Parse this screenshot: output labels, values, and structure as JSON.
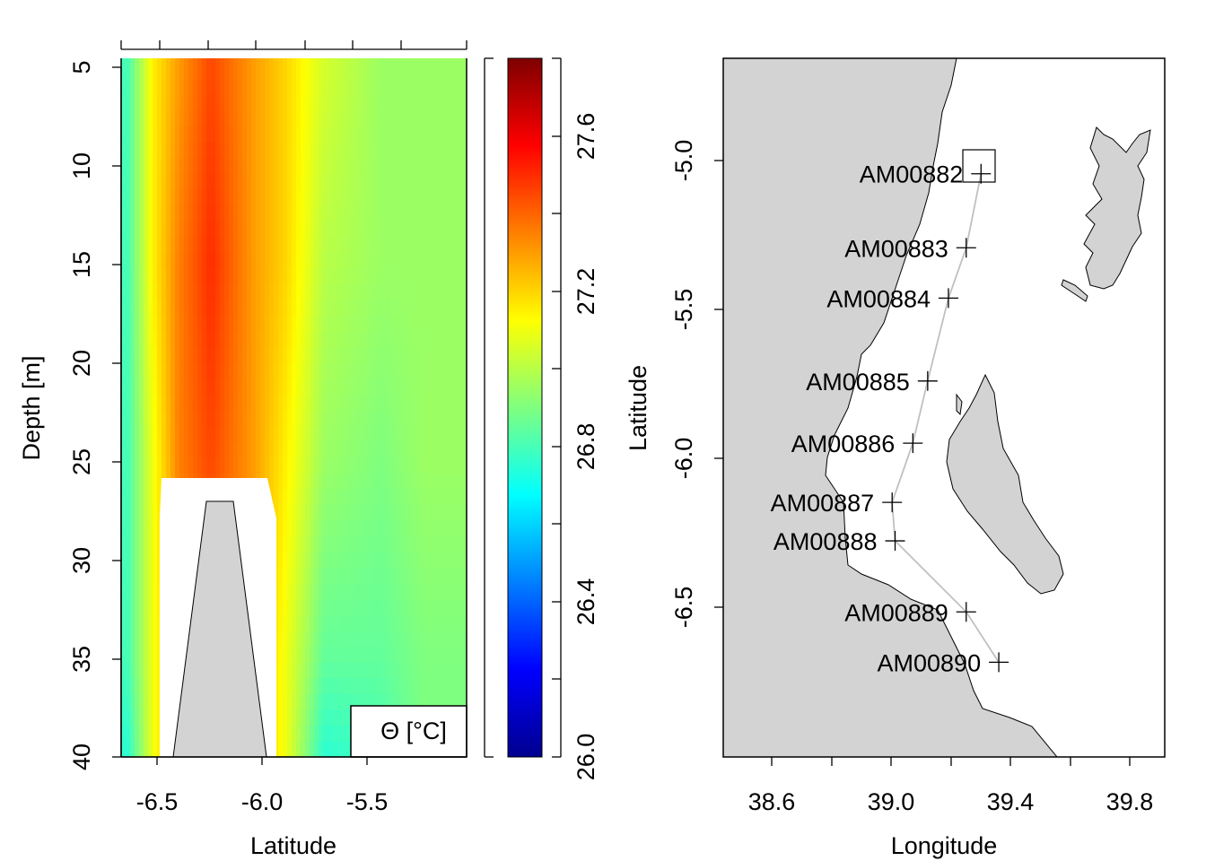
{
  "section_plot": {
    "xlabel": "Latitude",
    "ylabel": "Depth [m]",
    "x_ticks": [
      "-6.5",
      "-6.0",
      "-5.5"
    ],
    "y_ticks": [
      "5",
      "10",
      "15",
      "20",
      "25",
      "30",
      "35",
      "40"
    ],
    "legend_label": "Θ [°C]",
    "colorbar_ticks": [
      "26.0",
      "26.4",
      "26.8",
      "27.2",
      "27.6"
    ],
    "colorbar_range": [
      26.0,
      27.8
    ]
  },
  "map_plot": {
    "xlabel": "Longitude",
    "ylabel": "Latitude",
    "x_ticks": [
      "38.6",
      "39.0",
      "39.4",
      "39.8"
    ],
    "y_ticks": [
      "-5.0",
      "-5.5",
      "-6.0",
      "-6.5"
    ]
  },
  "chart_data": [
    {
      "type": "heatmap",
      "xlabel": "Latitude",
      "ylabel": "Depth [m]",
      "xlim": [
        -6.67,
        -5.05
      ],
      "ylim": [
        40,
        5
      ],
      "legend": "Θ [°C]",
      "zlim": [
        26.0,
        27.8
      ],
      "stations": [
        {
          "latitude": -6.64,
          "temps": [
            26.8,
            26.8,
            26.8,
            26.8,
            26.75
          ]
        },
        {
          "latitude": -6.52,
          "temps": [
            27.15,
            27.15,
            27.1,
            27.1,
            27.1
          ]
        },
        {
          "latitude": -6.4,
          "temps": [
            27.3,
            27.35,
            27.35,
            27.3,
            27.3
          ]
        },
        {
          "latitude": -6.25,
          "temps": [
            27.45,
            27.5,
            27.45,
            27.35,
            27.3
          ]
        },
        {
          "latitude": -6.05,
          "temps": [
            27.3,
            27.3,
            27.3,
            27.3,
            27.3
          ]
        },
        {
          "latitude": -5.9,
          "temps": [
            27.2,
            27.2,
            27.15,
            27.1,
            27.1
          ]
        },
        {
          "latitude": -5.72,
          "temps": [
            27.05,
            27.0,
            26.95,
            26.85,
            26.75
          ]
        },
        {
          "latitude": -5.45,
          "temps": [
            26.95,
            26.95,
            26.9,
            26.85,
            26.8
          ]
        },
        {
          "latitude": -5.25,
          "temps": [
            26.95,
            26.95,
            26.95,
            26.9,
            26.9
          ]
        }
      ],
      "depths": [
        5,
        15,
        25,
        35,
        40
      ]
    },
    {
      "type": "scatter",
      "xlabel": "Longitude",
      "ylabel": "Latitude",
      "xlim": [
        38.43,
        39.92
      ],
      "ylim": [
        -6.99,
        -4.63
      ],
      "stations": [
        {
          "name": "AM00882",
          "lon": 39.3,
          "lat": -5.02
        },
        {
          "name": "AM00883",
          "lon": 39.25,
          "lat": -5.27
        },
        {
          "name": "AM00884",
          "lon": 39.19,
          "lat": -5.44
        },
        {
          "name": "AM00885",
          "lon": 39.12,
          "lat": -5.72
        },
        {
          "name": "AM00886",
          "lon": 39.07,
          "lat": -5.93
        },
        {
          "name": "AM00887",
          "lon": 39.0,
          "lat": -6.13
        },
        {
          "name": "AM00888",
          "lon": 39.01,
          "lat": -6.26
        },
        {
          "name": "AM00889",
          "lon": 39.25,
          "lat": -6.5
        },
        {
          "name": "AM00890",
          "lon": 39.36,
          "lat": -6.67
        }
      ]
    }
  ]
}
